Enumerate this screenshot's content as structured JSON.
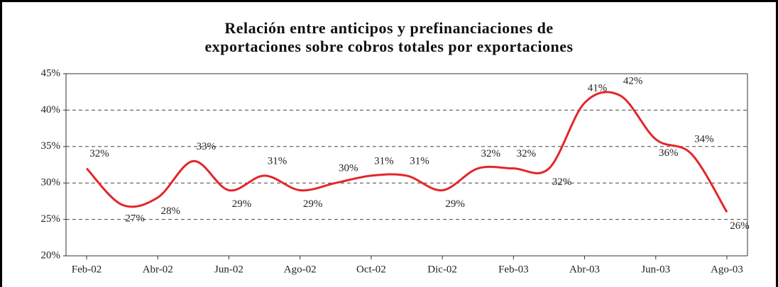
{
  "chart_data": {
    "type": "line",
    "title": [
      "Relación entre anticipos y prefinanciaciones de",
      "exportaciones sobre cobros totales por exportaciones"
    ],
    "categories": [
      "Feb-02",
      null,
      "Abr-02",
      null,
      "Jun-02",
      null,
      "Ago-02",
      null,
      "Oct-02",
      null,
      "Dic-02",
      null,
      "Feb-03",
      null,
      "Abr-03",
      null,
      "Jun-03",
      null,
      "Ago-03"
    ],
    "series": [
      {
        "color": "#e3262b",
        "values": [
          32,
          27,
          28,
          33,
          29,
          31,
          29,
          30,
          31,
          31,
          29,
          32,
          32,
          32,
          41,
          42,
          36,
          34,
          26
        ],
        "value_labels": [
          "32%",
          "27%",
          "28%",
          "33%",
          "29%",
          "31%",
          "29%",
          "30%",
          "31%",
          "31%",
          "29%",
          "32%",
          "32%",
          "32%",
          "41%",
          "42%",
          "36%",
          "34%",
          "26%"
        ]
      }
    ],
    "ylim": [
      20,
      45
    ],
    "yticks": [
      {
        "value": 20,
        "label": "20%"
      },
      {
        "value": 25,
        "label": "25%"
      },
      {
        "value": 30,
        "label": "30%"
      },
      {
        "value": 35,
        "label": "35%"
      },
      {
        "value": 40,
        "label": "40%"
      },
      {
        "value": 45,
        "label": "45%"
      }
    ],
    "grid": true
  }
}
